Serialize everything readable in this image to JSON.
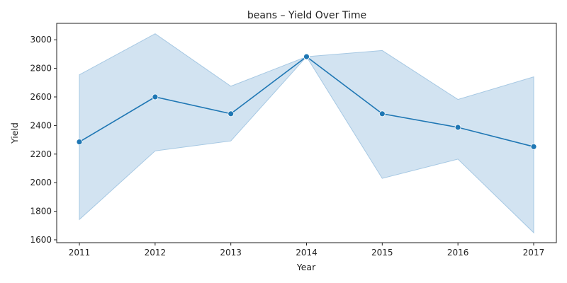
{
  "chart_data": {
    "type": "line",
    "title": "beans – Yield Over Time",
    "xlabel": "Year",
    "ylabel": "Yield",
    "x": [
      2011,
      2012,
      2013,
      2014,
      2015,
      2016,
      2017
    ],
    "x_tick_labels": [
      "2011",
      "2012",
      "2013",
      "2014",
      "2015",
      "2016",
      "2017"
    ],
    "y_ticks": [
      1600,
      1800,
      2000,
      2200,
      2400,
      2600,
      2800,
      3000
    ],
    "y_tick_labels": [
      "1600",
      "1800",
      "2000",
      "2200",
      "2400",
      "2600",
      "2800",
      "3000"
    ],
    "xlim": [
      2010.7,
      2017.3
    ],
    "ylim": [
      1580,
      3115
    ],
    "series": [
      {
        "values": [
          2285,
          2600,
          2482,
          2882,
          2482,
          2387,
          2252
        ],
        "ci_lower": [
          1742,
          2222,
          2292,
          2882,
          2030,
          2165,
          1650
        ],
        "ci_upper": [
          2755,
          3042,
          2675,
          2882,
          2925,
          2582,
          2740
        ],
        "color": "#1f77b4",
        "band_color": "#a6c8e3"
      }
    ],
    "grid": false,
    "legend": false
  }
}
